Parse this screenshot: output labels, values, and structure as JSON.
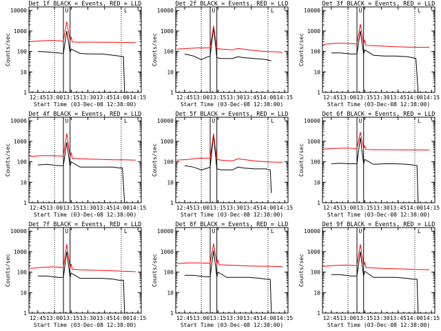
{
  "figure": {
    "panel_titles": [
      "Det 1f BLACK = Events, RED = LLD",
      "Det 2f BLACK = Events, RED = LLD",
      "Det 3f BLACK = Events, RED = LLD",
      "Det 4f BLACK = Events, RED = LLD",
      "Det 5f BLACK = Events, RED = LLD",
      "Det 6f BLACK = Events, RED = LLD",
      "Det 7f BLACK = Events, RED = LLD",
      "Det 8f BLACK = Events, RED = LLD",
      "Det 9f BLACK = Events, RED = LLD"
    ],
    "corner_labels": [
      "U",
      "L"
    ],
    "xlabel": "Start Time (03-Dec-08 12:38:00)",
    "ylabel": "Counts/sec",
    "colors": {
      "events": "#000000",
      "lld": "#ff0000",
      "axes": "#000000",
      "background": "#ffffff"
    }
  },
  "chart_data": [
    {
      "type": "line",
      "title": "Det 1f BLACK = Events, RED = LLD",
      "xlabel": "Start Time (03-Dec-08 12:38:00)",
      "ylabel": "Counts/sec",
      "x_tick_labels": [
        "12:45",
        "13:00",
        "13:15",
        "13:30",
        "13:45",
        "14:00",
        "14:15"
      ],
      "y_tick_labels": [
        "1",
        "10",
        "100",
        "1000",
        "10000"
      ],
      "y_scale": "log",
      "xlim_minutes": [
        -1,
        100
      ],
      "ylim": [
        1,
        15000
      ],
      "vlines_dotted_min": [
        22,
        82
      ],
      "vlines_solid_min": [
        30,
        36
      ],
      "series": [
        {
          "name": "BLACK = Events",
          "color": "#000000",
          "x": [
            7,
            15,
            25,
            30,
            33,
            36,
            37,
            45,
            55,
            65,
            75,
            80,
            84,
            85
          ],
          "y": [
            100,
            95,
            85,
            80,
            1000,
            90,
            130,
            80,
            75,
            75,
            65,
            60,
            55,
            1
          ]
        },
        {
          "name": "RED = LLD",
          "color": "#ff0000",
          "x": [
            0,
            10,
            20,
            30,
            33,
            36,
            37,
            38,
            45,
            55,
            65,
            75,
            85,
            95
          ],
          "y": [
            300,
            330,
            350,
            320,
            2800,
            330,
            500,
            290,
            280,
            285,
            280,
            280,
            275,
            270
          ]
        }
      ]
    },
    {
      "type": "line",
      "title": "Det 2f BLACK = Events, RED = LLD",
      "xlabel": "Start Time (03-Dec-08 12:38:00)",
      "ylabel": "Counts/sec",
      "x_tick_labels": [
        "12:45",
        "13:00",
        "13:15",
        "13:30",
        "13:45",
        "14:00",
        "14:15"
      ],
      "y_tick_labels": [
        "1",
        "10",
        "100",
        "1000",
        "10000"
      ],
      "y_scale": "log",
      "xlim_minutes": [
        -1,
        100
      ],
      "ylim": [
        1,
        15000
      ],
      "vlines_dotted_min": [
        22,
        82
      ],
      "vlines_solid_min": [
        30,
        36
      ],
      "series": [
        {
          "name": "BLACK = Events",
          "color": "#000000",
          "x": [
            7,
            15,
            22,
            28,
            30,
            33,
            36,
            40,
            50,
            55,
            60,
            70,
            80,
            85
          ],
          "y": [
            75,
            60,
            40,
            55,
            60,
            1500,
            50,
            45,
            45,
            55,
            50,
            45,
            40,
            35
          ]
        },
        {
          "name": "RED = LLD",
          "color": "#ff0000",
          "x": [
            0,
            10,
            20,
            30,
            33,
            36,
            40,
            50,
            55,
            60,
            70,
            80,
            90,
            95
          ],
          "y": [
            130,
            140,
            150,
            150,
            1800,
            140,
            130,
            120,
            140,
            130,
            110,
            100,
            95,
            90
          ]
        }
      ]
    },
    {
      "type": "line",
      "title": "Det 3f BLACK = Events, RED = LLD",
      "xlabel": "Start Time (03-Dec-08 12:38:00)",
      "ylabel": "Counts/sec",
      "x_tick_labels": [
        "12:45",
        "13:00",
        "13:15",
        "13:30",
        "13:45",
        "14:00",
        "14:15"
      ],
      "y_tick_labels": [
        "1",
        "10",
        "100",
        "1000",
        "10000"
      ],
      "y_scale": "log",
      "xlim_minutes": [
        -1,
        100
      ],
      "ylim": [
        1,
        15000
      ],
      "vlines_dotted_min": [
        22,
        82
      ],
      "vlines_solid_min": [
        30,
        36
      ],
      "series": [
        {
          "name": "BLACK = Events",
          "color": "#000000",
          "x": [
            7,
            15,
            25,
            30,
            33,
            36,
            37,
            45,
            55,
            65,
            75,
            80,
            83,
            85
          ],
          "y": [
            85,
            85,
            75,
            75,
            1000,
            75,
            120,
            65,
            60,
            60,
            55,
            50,
            45,
            1
          ]
        },
        {
          "name": "RED = LLD",
          "color": "#ff0000",
          "x": [
            0,
            10,
            20,
            30,
            33,
            36,
            37,
            38,
            45,
            55,
            65,
            75,
            85,
            95
          ],
          "y": [
            220,
            250,
            250,
            230,
            2200,
            230,
            350,
            200,
            190,
            180,
            170,
            165,
            160,
            160
          ]
        }
      ]
    },
    {
      "type": "line",
      "title": "Det 4f BLACK = Events, RED = LLD",
      "xlabel": "Start Time (03-Dec-08 12:38:00)",
      "ylabel": "Counts/sec",
      "x_tick_labels": [
        "12:45",
        "13:00",
        "13:15",
        "13:30",
        "13:45",
        "14:00",
        "14:15"
      ],
      "y_tick_labels": [
        "1",
        "10",
        "100",
        "1000",
        "10000"
      ],
      "y_scale": "log",
      "xlim_minutes": [
        -1,
        100
      ],
      "ylim": [
        1,
        15000
      ],
      "vlines_dotted_min": [
        22,
        82
      ],
      "vlines_solid_min": [
        30,
        36
      ],
      "series": [
        {
          "name": "BLACK = Events",
          "color": "#000000",
          "x": [
            7,
            15,
            25,
            30,
            33,
            36,
            37,
            45,
            55,
            65,
            75,
            80,
            83,
            85
          ],
          "y": [
            70,
            75,
            65,
            65,
            900,
            60,
            100,
            55,
            55,
            55,
            55,
            50,
            50,
            1
          ]
        },
        {
          "name": "RED = LLD",
          "color": "#ff0000",
          "x": [
            0,
            10,
            20,
            30,
            33,
            36,
            37,
            38,
            45,
            55,
            65,
            75,
            85,
            95
          ],
          "y": [
            180,
            200,
            200,
            190,
            2400,
            180,
            280,
            150,
            140,
            135,
            130,
            125,
            125,
            120
          ]
        }
      ]
    },
    {
      "type": "line",
      "title": "Det 5f BLACK = Events, RED = LLD",
      "xlabel": "Start Time (03-Dec-08 12:38:00)",
      "ylabel": "Counts/sec",
      "x_tick_labels": [
        "12:45",
        "13:00",
        "13:15",
        "13:30",
        "13:45",
        "14:00",
        "14:15"
      ],
      "y_tick_labels": [
        "1",
        "10",
        "100",
        "1000",
        "10000"
      ],
      "y_scale": "log",
      "xlim_minutes": [
        -1,
        100
      ],
      "ylim": [
        1,
        15000
      ],
      "vlines_dotted_min": [
        22,
        82
      ],
      "vlines_solid_min": [
        30,
        36
      ],
      "series": [
        {
          "name": "BLACK = Events",
          "color": "#000000",
          "x": [
            7,
            15,
            22,
            28,
            30,
            33,
            36,
            40,
            50,
            55,
            60,
            70,
            80,
            84,
            85
          ],
          "y": [
            65,
            55,
            40,
            50,
            55,
            2000,
            45,
            40,
            40,
            55,
            50,
            45,
            45,
            40,
            3
          ]
        },
        {
          "name": "RED = LLD",
          "color": "#ff0000",
          "x": [
            0,
            10,
            20,
            30,
            33,
            36,
            40,
            50,
            55,
            60,
            70,
            80,
            90,
            95
          ],
          "y": [
            120,
            130,
            150,
            150,
            2400,
            130,
            120,
            110,
            140,
            130,
            110,
            100,
            95,
            95
          ]
        }
      ]
    },
    {
      "type": "line",
      "title": "Det 6f BLACK = Events, RED = LLD",
      "xlabel": "Start Time (03-Dec-08 12:38:00)",
      "ylabel": "Counts/sec",
      "x_tick_labels": [
        "12:45",
        "13:00",
        "13:15",
        "13:30",
        "13:45",
        "14:00",
        "14:15"
      ],
      "y_tick_labels": [
        "1",
        "10",
        "100",
        "1000",
        "10000"
      ],
      "y_scale": "log",
      "xlim_minutes": [
        -1,
        100
      ],
      "ylim": [
        1,
        15000
      ],
      "vlines_dotted_min": [
        22,
        82
      ],
      "vlines_solid_min": [
        30,
        36
      ],
      "series": [
        {
          "name": "BLACK = Events",
          "color": "#000000",
          "x": [
            7,
            15,
            25,
            30,
            33,
            36,
            37,
            45,
            55,
            65,
            75,
            80,
            84,
            85
          ],
          "y": [
            80,
            85,
            80,
            80,
            1500,
            80,
            130,
            75,
            80,
            80,
            75,
            70,
            65,
            1
          ]
        },
        {
          "name": "RED = LLD",
          "color": "#ff0000",
          "x": [
            0,
            10,
            20,
            30,
            33,
            36,
            37,
            38,
            45,
            55,
            65,
            75,
            85,
            95
          ],
          "y": [
            420,
            450,
            470,
            440,
            2800,
            430,
            600,
            400,
            390,
            390,
            385,
            380,
            380,
            375
          ]
        }
      ]
    },
    {
      "type": "line",
      "title": "Det 7f BLACK = Events, RED = LLD",
      "xlabel": "Start Time (03-Dec-08 12:38:00)",
      "ylabel": "Counts/sec",
      "x_tick_labels": [
        "12:45",
        "13:00",
        "13:15",
        "13:30",
        "13:45",
        "14:00",
        "14:15"
      ],
      "y_tick_labels": [
        "1",
        "10",
        "100",
        "1000",
        "10000"
      ],
      "y_scale": "log",
      "xlim_minutes": [
        -1,
        100
      ],
      "ylim": [
        1,
        15000
      ],
      "vlines_dotted_min": [
        22,
        82
      ],
      "vlines_solid_min": [
        30,
        36
      ],
      "series": [
        {
          "name": "BLACK = Events",
          "color": "#000000",
          "x": [
            7,
            15,
            25,
            30,
            33,
            36,
            37,
            45,
            55,
            65,
            75,
            80,
            84,
            85
          ],
          "y": [
            65,
            65,
            55,
            55,
            1000,
            55,
            90,
            50,
            50,
            50,
            45,
            40,
            40,
            1
          ]
        },
        {
          "name": "RED = LLD",
          "color": "#ff0000",
          "x": [
            0,
            10,
            20,
            30,
            33,
            36,
            37,
            38,
            45,
            55,
            65,
            75,
            85,
            95
          ],
          "y": [
            150,
            170,
            180,
            170,
            2300,
            160,
            250,
            140,
            130,
            125,
            120,
            115,
            110,
            105
          ]
        }
      ]
    },
    {
      "type": "line",
      "title": "Det 8f BLACK = Events, RED = LLD",
      "xlabel": "Start Time (03-Dec-08 12:38:00)",
      "ylabel": "Counts/sec",
      "x_tick_labels": [
        "12:45",
        "13:00",
        "13:15",
        "13:30",
        "13:45",
        "14:00",
        "14:15"
      ],
      "y_tick_labels": [
        "1",
        "10",
        "100",
        "1000",
        "10000"
      ],
      "y_scale": "log",
      "xlim_minutes": [
        -1,
        100
      ],
      "ylim": [
        1,
        15000
      ],
      "vlines_dotted_min": [
        22,
        82
      ],
      "vlines_solid_min": [
        30,
        36
      ],
      "series": [
        {
          "name": "BLACK = Events",
          "color": "#000000",
          "x": [
            7,
            15,
            25,
            30,
            33,
            36,
            37,
            45,
            55,
            65,
            75,
            80,
            84,
            85
          ],
          "y": [
            70,
            70,
            60,
            60,
            1100,
            60,
            100,
            55,
            55,
            55,
            50,
            45,
            45,
            1
          ]
        },
        {
          "name": "RED = LLD",
          "color": "#ff0000",
          "x": [
            0,
            10,
            20,
            30,
            33,
            36,
            37,
            38,
            45,
            55,
            65,
            75,
            85,
            95
          ],
          "y": [
            260,
            280,
            280,
            270,
            2500,
            260,
            380,
            230,
            220,
            210,
            200,
            195,
            190,
            185
          ]
        }
      ]
    },
    {
      "type": "line",
      "title": "Det 9f BLACK = Events, RED = LLD",
      "xlabel": "Start Time (03-Dec-08 12:38:00)",
      "ylabel": "Counts/sec",
      "x_tick_labels": [
        "12:45",
        "13:00",
        "13:15",
        "13:30",
        "13:45",
        "14:00",
        "14:15"
      ],
      "y_tick_labels": [
        "1",
        "10",
        "100",
        "1000",
        "10000"
      ],
      "y_scale": "log",
      "xlim_minutes": [
        -1,
        100
      ],
      "ylim": [
        1,
        15000
      ],
      "vlines_dotted_min": [
        22,
        82
      ],
      "vlines_solid_min": [
        30,
        36
      ],
      "series": [
        {
          "name": "BLACK = Events",
          "color": "#000000",
          "x": [
            7,
            15,
            25,
            30,
            33,
            36,
            37,
            45,
            55,
            65,
            75,
            80,
            84,
            85
          ],
          "y": [
            75,
            75,
            65,
            65,
            1000,
            65,
            110,
            55,
            55,
            55,
            50,
            45,
            45,
            1
          ]
        },
        {
          "name": "RED = LLD",
          "color": "#ff0000",
          "x": [
            0,
            10,
            20,
            30,
            33,
            36,
            37,
            38,
            45,
            55,
            65,
            75,
            85,
            95
          ],
          "y": [
            190,
            210,
            220,
            210,
            2300,
            200,
            300,
            170,
            160,
            150,
            145,
            140,
            135,
            130
          ]
        }
      ]
    }
  ]
}
